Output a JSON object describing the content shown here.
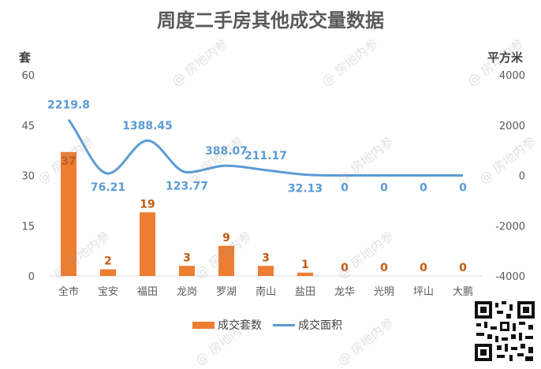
{
  "chart_data": {
    "type": "bar",
    "title": "周度二手房其他成交量数据",
    "categories": [
      "全市",
      "宝安",
      "福田",
      "龙岗",
      "罗湖",
      "南山",
      "盐田",
      "龙华",
      "光明",
      "坪山",
      "大鹏"
    ],
    "series": [
      {
        "name": "成交套数",
        "type": "bar",
        "axis": "left",
        "values": [
          37,
          2,
          19,
          3,
          9,
          3,
          1,
          0,
          0,
          0,
          0
        ],
        "labels": [
          "37",
          "2",
          "19",
          "3",
          "9",
          "3",
          "1",
          "0",
          "0",
          "0",
          "0"
        ]
      },
      {
        "name": "成交面积",
        "type": "line",
        "axis": "right",
        "smooth": true,
        "values": [
          2219.8,
          76.21,
          1388.45,
          123.77,
          388.07,
          211.17,
          32.13,
          0,
          0,
          0,
          0
        ],
        "labels": [
          "2219.8",
          "76.21",
          "1388.45",
          "123.77",
          "388.07",
          "211.17",
          "32.13",
          "0",
          "0",
          "0",
          "0"
        ]
      }
    ],
    "left_axis": {
      "unit": "套",
      "ylim": [
        0,
        60
      ],
      "ticks": [
        "60",
        "45",
        "30",
        "15",
        "0"
      ]
    },
    "right_axis": {
      "unit": "平方米",
      "ylim": [
        -4000,
        4000
      ],
      "ticks": [
        "4000",
        "2000",
        "0",
        "-2000",
        "-4000"
      ]
    },
    "grid": false,
    "legend_position": "bottom",
    "colors": {
      "bar": "#ED7D31",
      "line": "#5B9BD5",
      "bar_label": "#C55A11",
      "line_label": "#5B9BD5"
    }
  },
  "watermark": "@ 房地内参"
}
